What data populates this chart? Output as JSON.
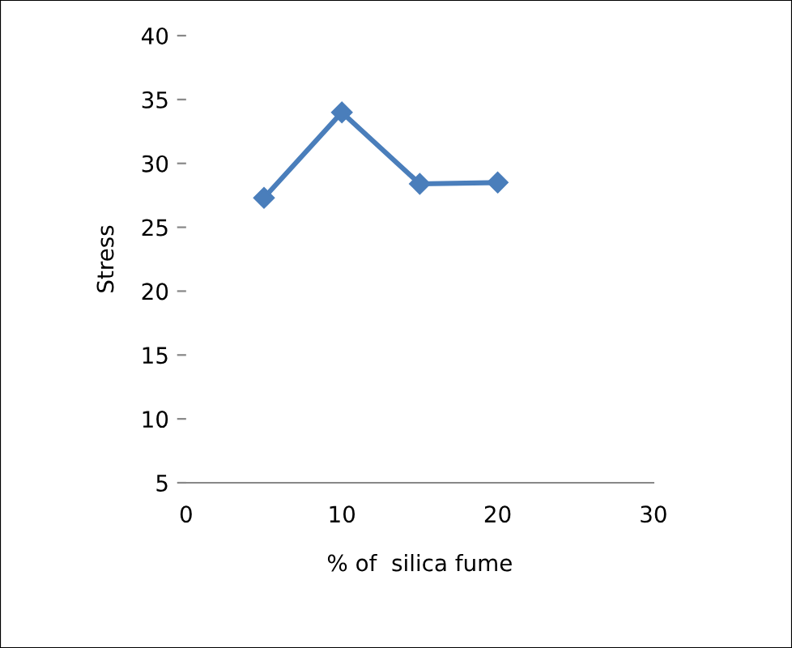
{
  "chart_data": {
    "type": "line",
    "xlabel": "% of  silica fume",
    "ylabel": "Stress",
    "x": [
      5,
      10,
      15,
      20
    ],
    "series": [
      {
        "color": "#4a7ebb",
        "values": [
          27.3,
          34.0,
          28.4,
          28.5
        ]
      }
    ],
    "xlim": [
      0,
      30
    ],
    "xticks": [
      0,
      10,
      20,
      30
    ],
    "ylim": [
      5,
      40
    ],
    "yticks": [
      5,
      10,
      15,
      20,
      25,
      30,
      35,
      40
    ],
    "grid": false,
    "legend": false,
    "marker": "diamond",
    "line_style": "solid"
  }
}
